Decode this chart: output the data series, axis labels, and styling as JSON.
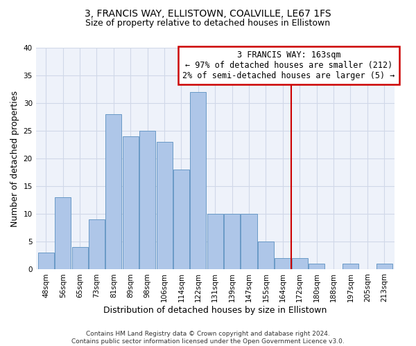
{
  "title": "3, FRANCIS WAY, ELLISTOWN, COALVILLE, LE67 1FS",
  "subtitle": "Size of property relative to detached houses in Ellistown",
  "xlabel": "Distribution of detached houses by size in Ellistown",
  "ylabel": "Number of detached properties",
  "bar_labels": [
    "48sqm",
    "56sqm",
    "65sqm",
    "73sqm",
    "81sqm",
    "89sqm",
    "98sqm",
    "106sqm",
    "114sqm",
    "122sqm",
    "131sqm",
    "139sqm",
    "147sqm",
    "155sqm",
    "164sqm",
    "172sqm",
    "180sqm",
    "188sqm",
    "197sqm",
    "205sqm",
    "213sqm"
  ],
  "bar_heights": [
    3,
    13,
    4,
    9,
    28,
    24,
    25,
    23,
    18,
    32,
    10,
    10,
    10,
    5,
    2,
    2,
    1,
    0,
    1,
    0,
    1
  ],
  "bar_color": "#aec6e8",
  "bar_edge_color": "#5a8fc0",
  "vline_x_index": 14.5,
  "annotation_text_lines": [
    "3 FRANCIS WAY: 163sqm",
    "← 97% of detached houses are smaller (212)",
    "2% of semi-detached houses are larger (5) →"
  ],
  "annotation_box_facecolor": "#ffffff",
  "annotation_box_edgecolor": "#cc0000",
  "vline_color": "#cc0000",
  "ylim": [
    0,
    40
  ],
  "yticks": [
    0,
    5,
    10,
    15,
    20,
    25,
    30,
    35,
    40
  ],
  "grid_color": "#d0d8e8",
  "background_color": "#eef2fa",
  "footer_line1": "Contains HM Land Registry data © Crown copyright and database right 2024.",
  "footer_line2": "Contains public sector information licensed under the Open Government Licence v3.0.",
  "title_fontsize": 10,
  "subtitle_fontsize": 9,
  "ylabel_fontsize": 9,
  "xlabel_fontsize": 9,
  "tick_fontsize": 7.5,
  "annotation_fontsize": 8.5,
  "footer_fontsize": 6.5
}
